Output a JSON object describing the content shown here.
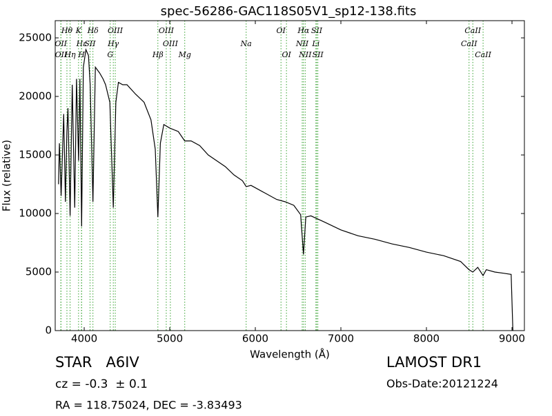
{
  "chart_data": {
    "type": "line",
    "title": "spec-56286-GAC118S05V1_sp12-138.fits",
    "xlabel": "Wavelength (Å)",
    "ylabel": "Flux (relative)",
    "xlim": [
      3661,
      9145
    ],
    "ylim": [
      0,
      26470
    ],
    "xticks": [
      4000,
      5000,
      6000,
      7000,
      8000,
      9000
    ],
    "yticks": [
      0,
      5000,
      10000,
      15000,
      20000,
      25000
    ],
    "color": "#000000",
    "line_color": "#33a02c",
    "x": [
      3700,
      3710,
      3730,
      3760,
      3780,
      3797,
      3810,
      3835,
      3860,
      3889,
      3910,
      3934,
      3950,
      3970,
      3990,
      4020,
      4050,
      4070,
      4102,
      4130,
      4180,
      4220,
      4250,
      4300,
      4340,
      4370,
      4400,
      4450,
      4500,
      4600,
      4700,
      4780,
      4830,
      4861,
      4890,
      4930,
      5000,
      5100,
      5175,
      5250,
      5350,
      5450,
      5550,
      5650,
      5750,
      5850,
      5893,
      5950,
      6100,
      6250,
      6350,
      6450,
      6530,
      6563,
      6590,
      6650,
      6800,
      7000,
      7200,
      7400,
      7600,
      7800,
      8000,
      8200,
      8400,
      8498,
      8542,
      8600,
      8662,
      8700,
      8800,
      8900,
      8990,
      9010
    ],
    "values": [
      12500,
      16000,
      11500,
      18500,
      11000,
      17000,
      19000,
      9800,
      21000,
      10500,
      21500,
      14500,
      21500,
      8900,
      22500,
      24000,
      23500,
      21000,
      11000,
      22500,
      22000,
      21500,
      21000,
      19500,
      10500,
      19500,
      21200,
      21000,
      21000,
      20200,
      19500,
      18000,
      15500,
      9700,
      16000,
      17600,
      17300,
      17000,
      16200,
      16200,
      15800,
      15000,
      14500,
      14000,
      13300,
      12800,
      12300,
      12400,
      11800,
      11200,
      11000,
      10700,
      9900,
      6500,
      9700,
      9800,
      9300,
      8600,
      8100,
      7800,
      7400,
      7100,
      6700,
      6400,
      5900,
      5200,
      5000,
      5400,
      4700,
      5200,
      5000,
      4900,
      4800,
      0
    ],
    "line_labels": [
      [
        {
          "label": "Hθ",
          "x": 3798
        },
        {
          "label": "K",
          "x": 3934
        },
        {
          "label": "Hδ",
          "x": 4102
        },
        {
          "label": "OIII",
          "x": 4363
        },
        {
          "label": "OIII",
          "x": 4959
        },
        {
          "label": "OI",
          "x": 6300
        },
        {
          "label": "Hα",
          "x": 6563
        },
        {
          "label": "SII",
          "x": 6717
        },
        {
          "label": "CaII",
          "x": 8542
        }
      ],
      [
        {
          "label": "OII",
          "x": 3727
        },
        {
          "label": "Hε",
          "x": 3970
        },
        {
          "label": "SII",
          "x": 4068
        },
        {
          "label": "Hγ",
          "x": 4340
        },
        {
          "label": "OIII",
          "x": 5007
        },
        {
          "label": "Na",
          "x": 5893
        },
        {
          "label": "NII",
          "x": 6548
        },
        {
          "label": "Li",
          "x": 6708
        },
        {
          "label": "CaII",
          "x": 8498
        }
      ],
      [
        {
          "label": "OII",
          "x": 3729
        },
        {
          "label": "Hη",
          "x": 3835
        },
        {
          "label": "H",
          "x": 3968
        },
        {
          "label": "G",
          "x": 4304
        },
        {
          "label": "Hβ",
          "x": 4861
        },
        {
          "label": "Mg",
          "x": 5175
        },
        {
          "label": "OI",
          "x": 6364
        },
        {
          "label": "NII",
          "x": 6583
        },
        {
          "label": "SII",
          "x": 6731
        },
        {
          "label": "CaII",
          "x": 8662
        }
      ]
    ],
    "class_info": "STAR   A6IV",
    "redshift": "cz = -0.3  ± 0.1",
    "coords": "RA = 118.75024, DEC = -3.83493",
    "survey": "LAMOST DR1",
    "obs_date": "Obs-Date:20121224"
  }
}
